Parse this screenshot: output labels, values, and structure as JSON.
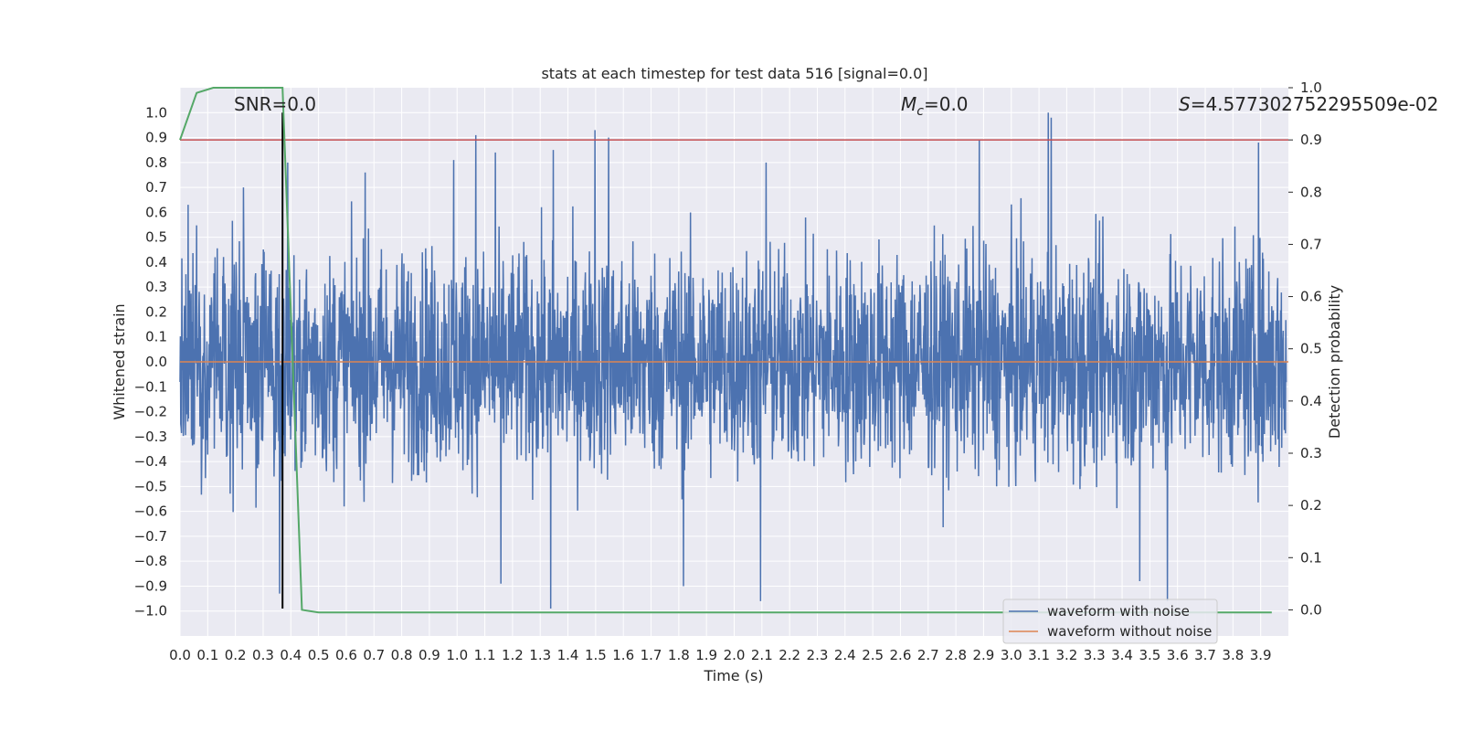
{
  "chart_data": {
    "type": "line",
    "title": "stats at each timestep for test data 516 [signal=0.0]",
    "xlabel": "Time (s)",
    "ylabel": "Whitened strain",
    "ylabel_right": "Detection probability",
    "xlim": [
      0.0,
      4.0
    ],
    "ylim": [
      -1.1,
      1.1
    ],
    "ylim_right": [
      -0.05,
      1.0
    ],
    "grid": true,
    "x_ticks": [
      "0.0",
      "0.1",
      "0.2",
      "0.3",
      "0.4",
      "0.5",
      "0.6",
      "0.7",
      "0.8",
      "0.9",
      "1.0",
      "1.1",
      "1.2",
      "1.3",
      "1.4",
      "1.5",
      "1.6",
      "1.7",
      "1.8",
      "1.9",
      "2.0",
      "2.1",
      "2.2",
      "2.3",
      "2.4",
      "2.5",
      "2.6",
      "2.7",
      "2.8",
      "2.9",
      "3.0",
      "3.1",
      "3.2",
      "3.3",
      "3.4",
      "3.5",
      "3.6",
      "3.7",
      "3.8",
      "3.9"
    ],
    "y_ticks": [
      "1.0",
      "0.9",
      "0.8",
      "0.7",
      "0.6",
      "0.5",
      "0.4",
      "0.3",
      "0.2",
      "0.1",
      "0.0",
      "−0.1",
      "−0.2",
      "−0.3",
      "−0.4",
      "−0.5",
      "−0.6",
      "−0.7",
      "−0.8",
      "−0.9",
      "−1.0"
    ],
    "y_ticks_right": [
      "1.0",
      "0.9",
      "0.8",
      "0.7",
      "0.6",
      "0.5",
      "0.4",
      "0.3",
      "0.2",
      "0.1",
      "0.0"
    ],
    "annotations": {
      "snr": "SNR=0.0",
      "mc_symbol": "M",
      "mc_sub": "c",
      "mc_value": "=0.0",
      "s_symbol": "S",
      "s_value": "=4.577302752295509e-02"
    },
    "legend": {
      "placement": "lower-right",
      "entries": [
        "waveform with noise",
        "waveform without noise"
      ]
    },
    "colors": {
      "noise": "#4c72b0",
      "clean": "#dd8452",
      "probability": "#55a868",
      "threshold": "#c44e52",
      "marker": "#000000",
      "background": "#eaeaf2",
      "grid": "#ffffff"
    },
    "series": [
      {
        "name": "waveform with noise",
        "axis": "left",
        "noise_envelope": {
          "typical_amplitude": 0.4,
          "max": 1.0,
          "min": -1.0
        },
        "notable_peaks": [
          {
            "x": 0.03,
            "y": 0.63
          },
          {
            "x": 0.23,
            "y": 0.7
          },
          {
            "x": 0.36,
            "y": -0.93
          },
          {
            "x": 0.39,
            "y": 0.8
          },
          {
            "x": 0.67,
            "y": 0.76
          },
          {
            "x": 0.99,
            "y": 0.81
          },
          {
            "x": 1.07,
            "y": 0.91
          },
          {
            "x": 1.14,
            "y": 0.84
          },
          {
            "x": 1.16,
            "y": -0.89
          },
          {
            "x": 1.34,
            "y": -0.99
          },
          {
            "x": 1.35,
            "y": 0.85
          },
          {
            "x": 1.5,
            "y": 0.93
          },
          {
            "x": 1.55,
            "y": 0.9
          },
          {
            "x": 1.82,
            "y": -0.9
          },
          {
            "x": 2.1,
            "y": -0.96
          },
          {
            "x": 2.12,
            "y": 0.8
          },
          {
            "x": 2.89,
            "y": 0.89
          },
          {
            "x": 3.14,
            "y": 1.0
          },
          {
            "x": 3.15,
            "y": 0.98
          },
          {
            "x": 3.47,
            "y": -0.88
          },
          {
            "x": 3.57,
            "y": -0.96
          },
          {
            "x": 3.9,
            "y": 0.88
          }
        ]
      },
      {
        "name": "waveform without noise",
        "axis": "left",
        "x": [
          0.0,
          4.0
        ],
        "y": [
          0.0,
          0.0
        ]
      },
      {
        "axis": "right",
        "x": [
          0.0,
          0.06,
          0.12,
          0.19,
          0.25,
          0.31,
          0.37,
          0.44,
          0.5,
          3.94
        ],
        "y": [
          0.9,
          0.99,
          1.0,
          1.0,
          1.0,
          1.0,
          1.0,
          0.0,
          -0.005,
          -0.005
        ]
      }
    ],
    "hlines": [
      {
        "axis": "right",
        "y": 0.9,
        "color": "#c44e52"
      }
    ],
    "vlines": [
      {
        "x": 0.37,
        "y_range": [
          -0.99,
          1.0
        ],
        "color": "#000000"
      }
    ]
  }
}
